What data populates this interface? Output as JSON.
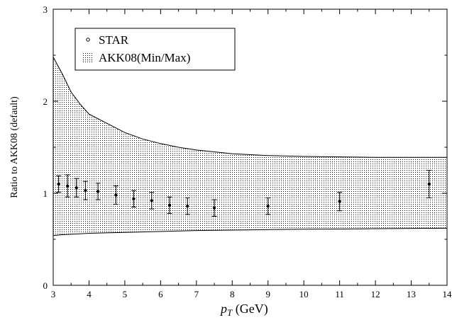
{
  "chart_data": {
    "type": "scatter",
    "xlabel_main": "p",
    "xlabel_sub": "T",
    "xlabel_unit": " (GeV)",
    "ylabel": "Ratio to AKK08 (default)",
    "xlim": [
      3,
      14
    ],
    "ylim": [
      0,
      3
    ],
    "x_ticks": [
      3,
      4,
      5,
      6,
      7,
      8,
      9,
      10,
      11,
      12,
      13,
      14
    ],
    "y_ticks": [
      0,
      1,
      2,
      3
    ],
    "grid": false,
    "legend_position": "top-left",
    "legend": [
      {
        "name": "STAR",
        "marker": "open-circle"
      },
      {
        "name": "AKK08(Min/Max)",
        "marker": "dotted-band"
      }
    ],
    "series": [
      {
        "name": "STAR",
        "kind": "points-with-error-bars",
        "points": [
          {
            "x": 3.15,
            "y": 1.1,
            "err": 0.09
          },
          {
            "x": 3.4,
            "y": 1.08,
            "err": 0.12
          },
          {
            "x": 3.65,
            "y": 1.06,
            "err": 0.1
          },
          {
            "x": 3.9,
            "y": 1.03,
            "err": 0.1
          },
          {
            "x": 4.25,
            "y": 1.02,
            "err": 0.09
          },
          {
            "x": 4.75,
            "y": 0.98,
            "err": 0.1
          },
          {
            "x": 5.25,
            "y": 0.94,
            "err": 0.09
          },
          {
            "x": 5.75,
            "y": 0.92,
            "err": 0.09
          },
          {
            "x": 6.25,
            "y": 0.87,
            "err": 0.09
          },
          {
            "x": 6.75,
            "y": 0.86,
            "err": 0.09
          },
          {
            "x": 7.5,
            "y": 0.84,
            "err": 0.09
          },
          {
            "x": 9.0,
            "y": 0.86,
            "err": 0.09
          },
          {
            "x": 11.0,
            "y": 0.91,
            "err": 0.1
          },
          {
            "x": 13.5,
            "y": 1.1,
            "err": 0.15
          }
        ]
      },
      {
        "name": "AKK08(Min/Max)",
        "kind": "band",
        "x": [
          3.0,
          3.25,
          3.5,
          3.75,
          4.0,
          4.5,
          5.0,
          5.5,
          6.0,
          6.5,
          7.0,
          8.0,
          9.0,
          10.0,
          11.0,
          12.0,
          13.0,
          14.0
        ],
        "upper": [
          2.48,
          2.3,
          2.1,
          1.97,
          1.86,
          1.76,
          1.66,
          1.59,
          1.54,
          1.5,
          1.47,
          1.43,
          1.41,
          1.4,
          1.395,
          1.39,
          1.39,
          1.39
        ],
        "lower": [
          0.54,
          0.55,
          0.555,
          0.56,
          0.565,
          0.57,
          0.575,
          0.58,
          0.585,
          0.59,
          0.595,
          0.6,
          0.605,
          0.61,
          0.612,
          0.615,
          0.618,
          0.62
        ]
      }
    ]
  }
}
